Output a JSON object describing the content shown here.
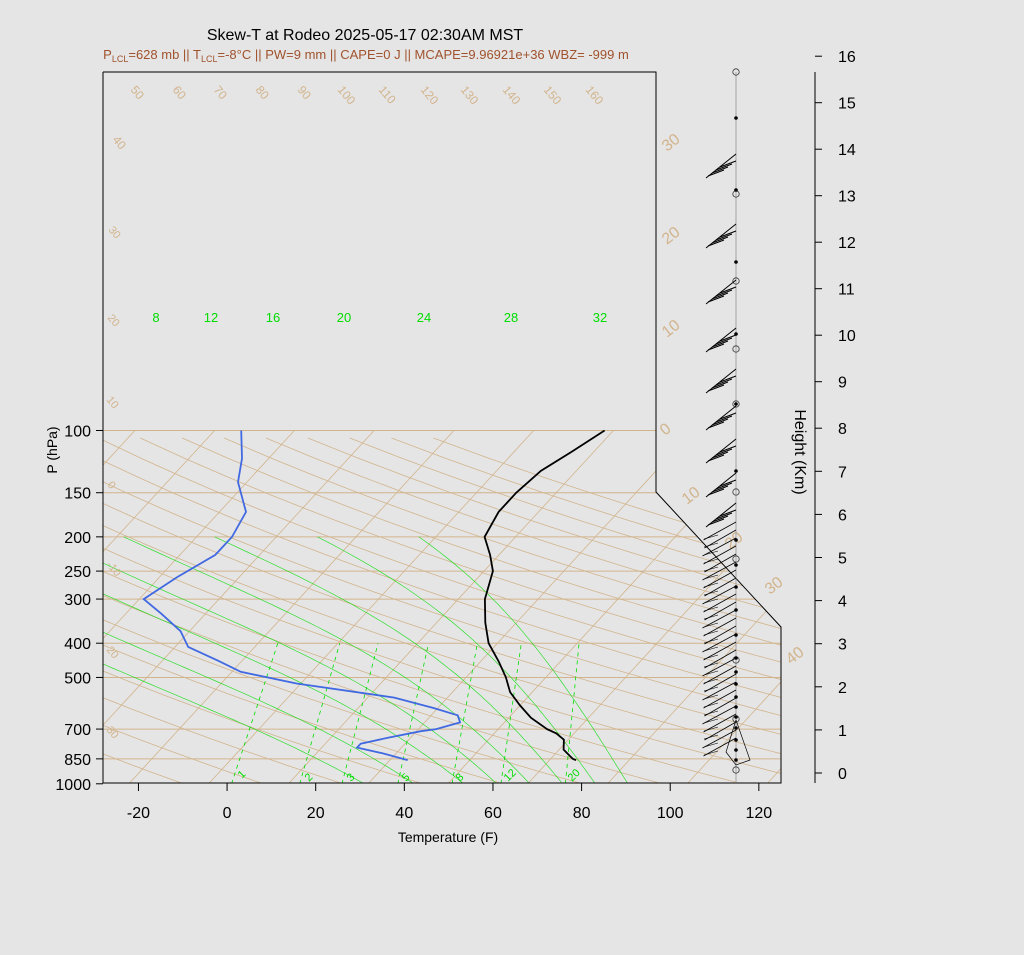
{
  "chart_data": {
    "type": "skew-t",
    "title": "Skew-T at Rodeo 2025-05-17 02:30AM MST",
    "subtitle": {
      "plcl_label": "LCL",
      "plcl_value": "=628 mb || T",
      "tlcl_label": "LCL",
      "tlcl_value": "=-8°C || PW=9 mm || CAPE=0 J || MCAPE=9.96921e+36 WBZ= -999 m"
    },
    "xlabel": "Temperature (F)",
    "ylabel": "P (hPa)",
    "y2label": "Height (Km)",
    "x_ticks": [
      -20,
      0,
      20,
      40,
      60,
      80,
      100,
      120
    ],
    "p_ticks": [
      100,
      150,
      200,
      250,
      300,
      400,
      500,
      700,
      850,
      1000
    ],
    "height_ticks": [
      0,
      1,
      2,
      3,
      4,
      5,
      6,
      7,
      8,
      9,
      10,
      11,
      12,
      13,
      14,
      15,
      16
    ],
    "xlim": [
      -28,
      125
    ],
    "plim": [
      1000,
      100
    ],
    "isotherm_labels": [
      "30",
      "20",
      "10",
      "0",
      "10",
      "20",
      "30",
      "40"
    ],
    "dry_adiabat_labels": [
      "40",
      "50",
      "60",
      "70",
      "80",
      "90",
      "100",
      "110",
      "120",
      "130",
      "140",
      "150",
      "160"
    ],
    "left_dry_labels": [
      "40",
      "30",
      "20",
      "10",
      "0",
      "-10",
      "20",
      "30"
    ],
    "mixing_ratio_labels_top": [
      "8",
      "12",
      "16",
      "20",
      "24",
      "28",
      "32"
    ],
    "mixing_ratio_labels_bottom": [
      "1",
      "2",
      "3",
      "5",
      "8",
      "12",
      "20"
    ],
    "series": [
      {
        "name": "temperature",
        "color": "#000000",
        "points": [
          [
            857,
            74
          ],
          [
            850,
            73
          ],
          [
            800,
            69
          ],
          [
            750,
            67
          ],
          [
            720,
            64
          ],
          [
            700,
            61
          ],
          [
            650,
            55
          ],
          [
            600,
            50
          ],
          [
            550,
            45
          ],
          [
            500,
            41
          ],
          [
            450,
            36
          ],
          [
            400,
            30
          ],
          [
            350,
            25
          ],
          [
            300,
            20
          ],
          [
            250,
            16
          ],
          [
            225,
            12
          ],
          [
            200,
            7
          ],
          [
            170,
            5
          ],
          [
            150,
            5
          ],
          [
            130,
            6
          ],
          [
            115,
            9
          ],
          [
            100,
            12
          ]
        ]
      },
      {
        "name": "dewpoint",
        "color": "#4169e1",
        "points": [
          [
            857,
            36
          ],
          [
            820,
            29
          ],
          [
            790,
            22
          ],
          [
            770,
            22
          ],
          [
            740,
            27
          ],
          [
            710,
            33
          ],
          [
            700,
            36
          ],
          [
            670,
            40
          ],
          [
            640,
            38
          ],
          [
            610,
            31
          ],
          [
            570,
            20
          ],
          [
            520,
            -5
          ],
          [
            482,
            -20
          ],
          [
            450,
            -27
          ],
          [
            410,
            -37
          ],
          [
            370,
            -42
          ],
          [
            330,
            -50
          ],
          [
            300,
            -57
          ],
          [
            260,
            -54
          ],
          [
            225,
            -50
          ],
          [
            200,
            -50
          ],
          [
            170,
            -52
          ],
          [
            140,
            -60
          ],
          [
            120,
            -64
          ],
          [
            100,
            -70
          ]
        ]
      }
    ],
    "wind_colors": {
      "sky": "#e5e5e5",
      "iso_color": "#d2b48c",
      "mix_color": "#00dd00"
    }
  }
}
